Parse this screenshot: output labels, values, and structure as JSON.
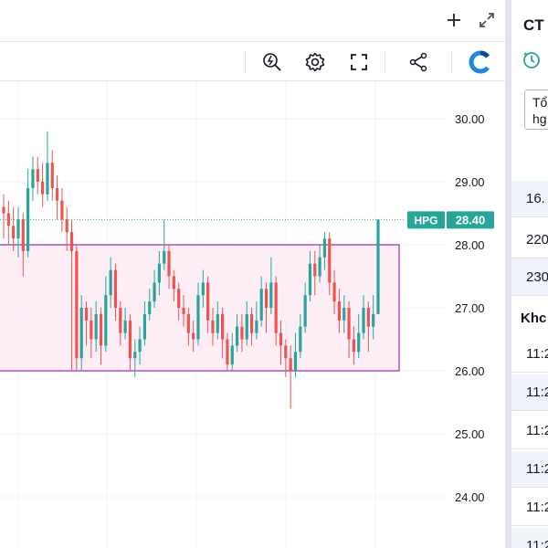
{
  "window_buttons": {
    "add_icon": "plus-icon",
    "expand_icon": "expand-icon"
  },
  "toolbar": {
    "tools": [
      {
        "name": "price-alert-icon"
      },
      {
        "name": "settings-gear-icon"
      },
      {
        "name": "fullscreen-icon"
      },
      {
        "name": "share-icon"
      },
      {
        "name": "brand-logo-icon"
      }
    ],
    "accent_color": "#1e88e5"
  },
  "chart_data": {
    "type": "candlestick",
    "symbol_label": "HPG",
    "last_price_label": "28.40",
    "last_price": 28.4,
    "price_axis": {
      "ticks": [
        "30.00",
        "29.00",
        "28.00",
        "27.00",
        "26.00",
        "25.00",
        "24.00"
      ],
      "tick_values": [
        30,
        29,
        28,
        27,
        26,
        25,
        24
      ],
      "range": [
        23.3,
        30.6
      ]
    },
    "annotation_rectangle": {
      "top_price": 28.0,
      "bottom_price": 26.0,
      "fill": "#fce8f3",
      "stroke": "#9c27b0"
    },
    "up_color": "#26a69a",
    "down_color": "#ef5350",
    "candles": [
      [
        28.6,
        28.5,
        28.8,
        28.1
      ],
      [
        28.5,
        28.3,
        28.7,
        28.0
      ],
      [
        28.3,
        28.1,
        28.6,
        27.9
      ],
      [
        28.1,
        28.4,
        28.6,
        27.8
      ],
      [
        28.4,
        27.9,
        28.5,
        27.5
      ],
      [
        27.9,
        28.9,
        29.2,
        27.8
      ],
      [
        28.9,
        29.2,
        29.4,
        28.7
      ],
      [
        29.2,
        29.0,
        29.4,
        28.8
      ],
      [
        29.0,
        28.8,
        29.3,
        28.6
      ],
      [
        28.8,
        29.3,
        29.8,
        28.7
      ],
      [
        29.3,
        28.9,
        29.5,
        28.7
      ],
      [
        28.9,
        28.7,
        29.1,
        28.4
      ],
      [
        28.7,
        28.4,
        28.9,
        28.2
      ],
      [
        28.4,
        28.2,
        28.6,
        27.9
      ],
      [
        28.2,
        27.9,
        28.4,
        26.0
      ],
      [
        27.9,
        26.2,
        28.0,
        26.0
      ],
      [
        26.2,
        27.0,
        27.2,
        26.0
      ],
      [
        27.0,
        26.8,
        27.1,
        26.4
      ],
      [
        26.8,
        26.5,
        27.0,
        26.2
      ],
      [
        26.5,
        26.9,
        27.1,
        26.3
      ],
      [
        26.9,
        26.4,
        27.0,
        26.1
      ],
      [
        26.4,
        27.2,
        27.5,
        26.3
      ],
      [
        27.2,
        27.6,
        27.8,
        27.0
      ],
      [
        27.6,
        27.0,
        27.7,
        26.8
      ],
      [
        27.0,
        26.6,
        27.1,
        26.4
      ],
      [
        26.6,
        26.8,
        27.0,
        26.5
      ],
      [
        26.8,
        26.2,
        26.9,
        26.0
      ],
      [
        26.2,
        26.3,
        26.5,
        25.9
      ],
      [
        26.3,
        26.5,
        26.7,
        26.1
      ],
      [
        26.5,
        26.9,
        27.1,
        26.4
      ],
      [
        26.9,
        27.1,
        27.3,
        26.8
      ],
      [
        27.1,
        27.4,
        27.6,
        27.0
      ],
      [
        27.4,
        27.7,
        27.9,
        27.2
      ],
      [
        27.7,
        27.9,
        28.4,
        27.6
      ],
      [
        27.9,
        27.5,
        28.0,
        27.3
      ],
      [
        27.5,
        27.3,
        27.6,
        27.1
      ],
      [
        27.3,
        27.0,
        27.4,
        26.8
      ],
      [
        27.0,
        26.9,
        27.2,
        26.7
      ],
      [
        26.9,
        26.6,
        27.0,
        26.4
      ],
      [
        26.6,
        26.5,
        26.8,
        26.3
      ],
      [
        26.5,
        27.2,
        27.4,
        26.4
      ],
      [
        27.2,
        27.4,
        27.6,
        27.0
      ],
      [
        27.4,
        26.8,
        27.5,
        26.6
      ],
      [
        26.8,
        26.6,
        27.0,
        26.4
      ],
      [
        26.6,
        26.9,
        27.1,
        26.5
      ],
      [
        26.9,
        26.5,
        27.0,
        26.2
      ],
      [
        26.5,
        26.1,
        26.6,
        26.0
      ],
      [
        26.1,
        26.4,
        26.6,
        26.0
      ],
      [
        26.4,
        26.7,
        26.9,
        26.3
      ],
      [
        26.7,
        26.5,
        26.9,
        26.3
      ],
      [
        26.5,
        26.9,
        27.1,
        26.4
      ],
      [
        26.9,
        26.6,
        27.0,
        26.4
      ],
      [
        26.6,
        26.8,
        27.1,
        26.5
      ],
      [
        26.8,
        27.3,
        27.5,
        26.7
      ],
      [
        27.3,
        27.0,
        27.4,
        26.6
      ],
      [
        27.0,
        27.4,
        27.8,
        26.9
      ],
      [
        27.4,
        26.6,
        27.5,
        26.4
      ],
      [
        26.6,
        26.4,
        26.8,
        26.1
      ],
      [
        26.4,
        26.2,
        26.5,
        25.9
      ],
      [
        26.2,
        26.0,
        26.4,
        25.4
      ],
      [
        26.0,
        26.3,
        26.6,
        25.9
      ],
      [
        26.3,
        26.7,
        26.9,
        26.2
      ],
      [
        26.7,
        27.2,
        27.4,
        26.6
      ],
      [
        27.2,
        27.7,
        27.9,
        27.1
      ],
      [
        27.7,
        27.5,
        27.9,
        27.2
      ],
      [
        27.5,
        27.8,
        28.0,
        27.4
      ],
      [
        27.8,
        28.1,
        28.2,
        27.6
      ],
      [
        28.1,
        27.4,
        28.2,
        27.2
      ],
      [
        27.4,
        27.1,
        27.6,
        26.9
      ],
      [
        27.1,
        26.8,
        27.3,
        26.6
      ],
      [
        26.8,
        27.0,
        27.2,
        26.6
      ],
      [
        27.0,
        26.5,
        27.1,
        26.2
      ],
      [
        26.5,
        26.3,
        26.7,
        26.1
      ],
      [
        26.3,
        26.6,
        26.9,
        26.2
      ],
      [
        26.6,
        27.0,
        27.2,
        26.5
      ],
      [
        27.0,
        26.7,
        27.1,
        26.3
      ],
      [
        26.7,
        26.9,
        27.2,
        26.5
      ],
      [
        26.9,
        28.4,
        28.4,
        26.9
      ]
    ]
  },
  "right_panel": {
    "title": "CT",
    "box_line1": "Tổ",
    "box_line2": "hg",
    "rows": [
      "16.",
      "220",
      "230"
    ],
    "section_header": "Khc",
    "trades": [
      "11:2",
      "11:2",
      "11:2",
      "11:2",
      "11:2",
      "11:2"
    ]
  }
}
